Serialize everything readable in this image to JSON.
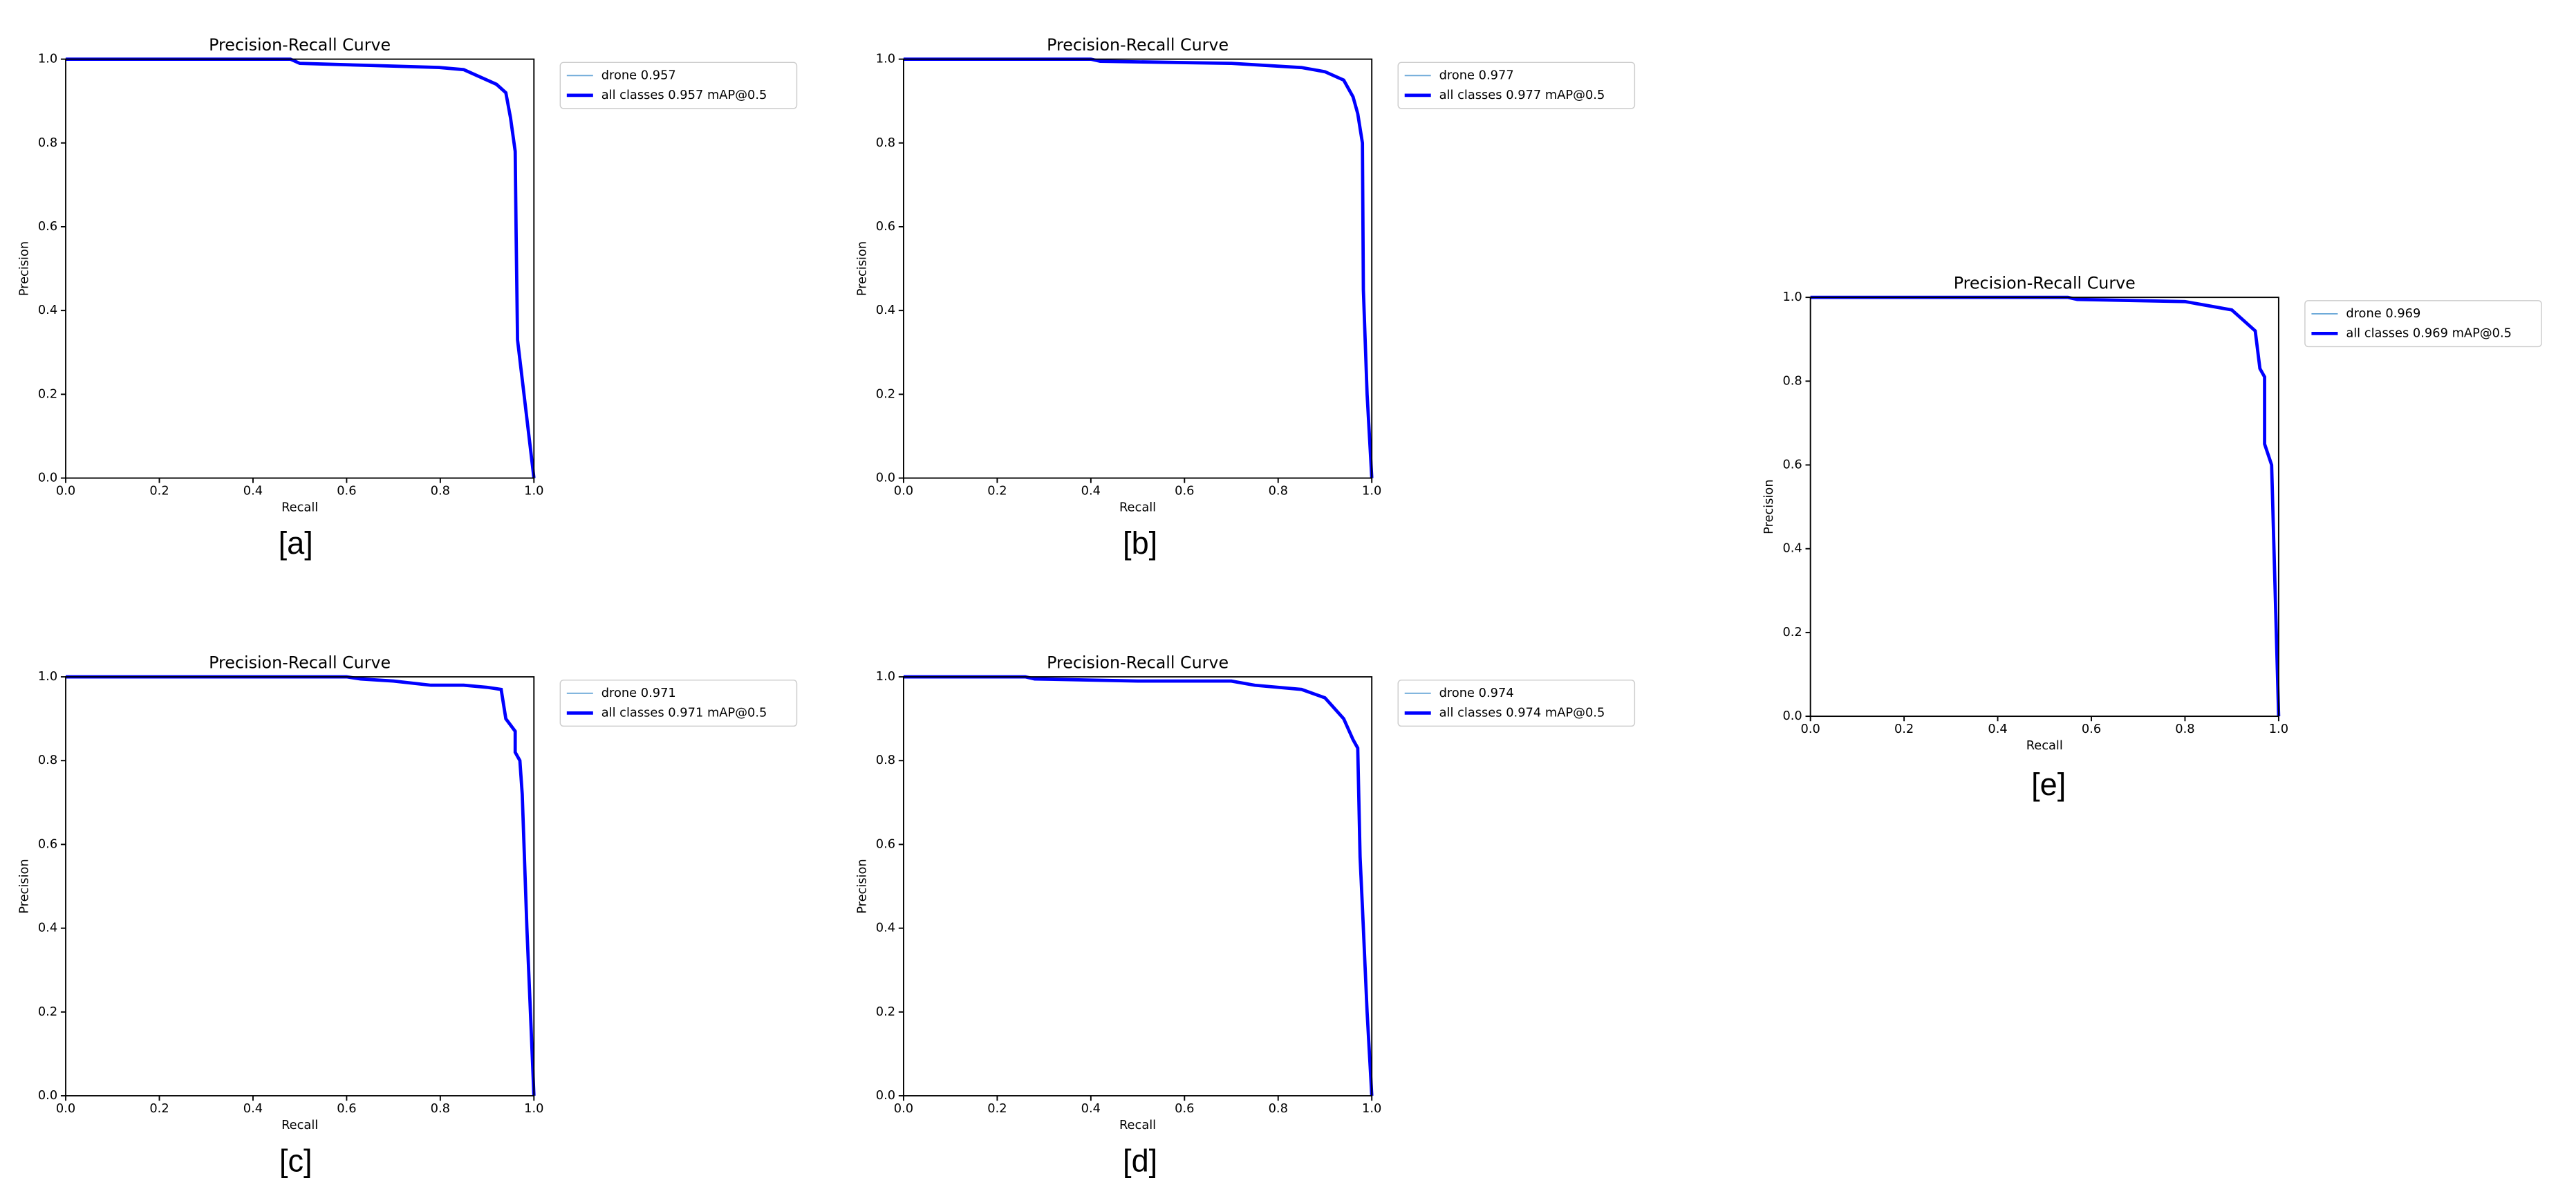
{
  "chart_data": [
    {
      "type": "line",
      "title": "Precision-Recall Curve",
      "x_label": "Recall",
      "y_label": "Precision",
      "caption": "[a]",
      "x": [
        0,
        0.48,
        0.5,
        0.65,
        0.8,
        0.85,
        0.88,
        0.92,
        0.94,
        0.95,
        0.96,
        0.962,
        0.965,
        1.0
      ],
      "series": [
        {
          "name": "drone 0.957",
          "color": "#6aa8d8",
          "values": [
            1,
            1,
            0.99,
            0.985,
            0.98,
            0.975,
            0.96,
            0.94,
            0.92,
            0.86,
            0.78,
            0.58,
            0.33,
            0
          ]
        },
        {
          "name": "all classes 0.957 mAP@0.5",
          "color": "#0000ff",
          "values": [
            1,
            1,
            0.99,
            0.985,
            0.98,
            0.975,
            0.96,
            0.94,
            0.92,
            0.86,
            0.78,
            0.58,
            0.33,
            0
          ]
        }
      ],
      "xlim": [
        0,
        1
      ],
      "ylim": [
        0,
        1
      ],
      "xticks": [
        {
          "value": 0,
          "label": "0.0"
        },
        0.2,
        0.4,
        0.6,
        0.8,
        {
          "value": 1,
          "label": "1.0"
        }
      ],
      "yticks": [
        {
          "value": 0,
          "label": "0.0"
        },
        0.2,
        0.4,
        0.6,
        0.8,
        {
          "value": 1,
          "label": "1.0"
        }
      ]
    },
    {
      "type": "line",
      "title": "Precision-Recall Curve",
      "x_label": "Recall",
      "y_label": "Precision",
      "caption": "[b]",
      "x": [
        0,
        0.4,
        0.42,
        0.7,
        0.85,
        0.9,
        0.94,
        0.96,
        0.97,
        0.98,
        0.982,
        0.99,
        1.0
      ],
      "series": [
        {
          "name": "drone 0.977",
          "color": "#6aa8d8",
          "values": [
            1,
            1,
            0.995,
            0.99,
            0.98,
            0.97,
            0.95,
            0.91,
            0.87,
            0.8,
            0.45,
            0.2,
            0
          ]
        },
        {
          "name": "all classes 0.977 mAP@0.5",
          "color": "#0000ff",
          "values": [
            1,
            1,
            0.995,
            0.99,
            0.98,
            0.97,
            0.95,
            0.91,
            0.87,
            0.8,
            0.45,
            0.2,
            0
          ]
        }
      ],
      "xlim": [
        0,
        1
      ],
      "ylim": [
        0,
        1
      ],
      "xticks": [
        {
          "value": 0,
          "label": "0.0"
        },
        0.2,
        0.4,
        0.6,
        0.8,
        {
          "value": 1,
          "label": "1.0"
        }
      ],
      "yticks": [
        {
          "value": 0,
          "label": "0.0"
        },
        0.2,
        0.4,
        0.6,
        0.8,
        {
          "value": 1,
          "label": "1.0"
        }
      ]
    },
    {
      "type": "line",
      "title": "Precision-Recall Curve",
      "x_label": "Recall",
      "y_label": "Precision",
      "caption": "[c]",
      "x": [
        0,
        0.6,
        0.63,
        0.7,
        0.78,
        0.85,
        0.9,
        0.93,
        0.94,
        0.96,
        0.96,
        0.97,
        0.975,
        0.985,
        1.0
      ],
      "series": [
        {
          "name": "drone 0.971",
          "color": "#6aa8d8",
          "values": [
            1,
            1,
            0.995,
            0.99,
            0.98,
            0.98,
            0.975,
            0.97,
            0.9,
            0.87,
            0.82,
            0.8,
            0.72,
            0.4,
            0
          ]
        },
        {
          "name": "all classes 0.971 mAP@0.5",
          "color": "#0000ff",
          "values": [
            1,
            1,
            0.995,
            0.99,
            0.98,
            0.98,
            0.975,
            0.97,
            0.9,
            0.87,
            0.82,
            0.8,
            0.72,
            0.4,
            0
          ]
        }
      ],
      "xlim": [
        0,
        1
      ],
      "ylim": [
        0,
        1
      ],
      "xticks": [
        {
          "value": 0,
          "label": "0.0"
        },
        0.2,
        0.4,
        0.6,
        0.8,
        {
          "value": 1,
          "label": "1.0"
        }
      ],
      "yticks": [
        {
          "value": 0,
          "label": "0.0"
        },
        0.2,
        0.4,
        0.6,
        0.8,
        {
          "value": 1,
          "label": "1.0"
        }
      ]
    },
    {
      "type": "line",
      "title": "Precision-Recall Curve",
      "x_label": "Recall",
      "y_label": "Precision",
      "caption": "[d]",
      "x": [
        0,
        0.26,
        0.28,
        0.5,
        0.7,
        0.75,
        0.85,
        0.9,
        0.94,
        0.96,
        0.97,
        0.975,
        0.98,
        0.99,
        1.0
      ],
      "series": [
        {
          "name": "drone 0.974",
          "color": "#6aa8d8",
          "values": [
            1,
            1,
            0.995,
            0.99,
            0.99,
            0.98,
            0.97,
            0.95,
            0.9,
            0.85,
            0.83,
            0.57,
            0.45,
            0.2,
            0
          ]
        },
        {
          "name": "all classes 0.974 mAP@0.5",
          "color": "#0000ff",
          "values": [
            1,
            1,
            0.995,
            0.99,
            0.99,
            0.98,
            0.97,
            0.95,
            0.9,
            0.85,
            0.83,
            0.57,
            0.45,
            0.2,
            0
          ]
        }
      ],
      "xlim": [
        0,
        1
      ],
      "ylim": [
        0,
        1
      ],
      "xticks": [
        {
          "value": 0,
          "label": "0.0"
        },
        0.2,
        0.4,
        0.6,
        0.8,
        {
          "value": 1,
          "label": "1.0"
        }
      ],
      "yticks": [
        {
          "value": 0,
          "label": "0.0"
        },
        0.2,
        0.4,
        0.6,
        0.8,
        {
          "value": 1,
          "label": "1.0"
        }
      ]
    },
    {
      "type": "line",
      "title": "Precision-Recall Curve",
      "x_label": "Recall",
      "y_label": "Precision",
      "caption": "[e]",
      "x": [
        0,
        0.55,
        0.57,
        0.8,
        0.85,
        0.9,
        0.93,
        0.95,
        0.96,
        0.97,
        0.97,
        0.985,
        0.99,
        1.0
      ],
      "series": [
        {
          "name": "drone 0.969",
          "color": "#6aa8d8",
          "values": [
            1,
            1,
            0.995,
            0.99,
            0.98,
            0.97,
            0.94,
            0.92,
            0.83,
            0.81,
            0.65,
            0.6,
            0.4,
            0
          ]
        },
        {
          "name": "all classes 0.969 mAP@0.5",
          "color": "#0000ff",
          "values": [
            1,
            1,
            0.995,
            0.99,
            0.98,
            0.97,
            0.94,
            0.92,
            0.83,
            0.81,
            0.65,
            0.6,
            0.4,
            0
          ]
        }
      ],
      "xlim": [
        0,
        1
      ],
      "ylim": [
        0,
        1
      ],
      "xticks": [
        {
          "value": 0,
          "label": "0.0"
        },
        0.2,
        0.4,
        0.6,
        0.8,
        {
          "value": 1,
          "label": "1.0"
        }
      ],
      "yticks": [
        {
          "value": 0,
          "label": "0.0"
        },
        0.2,
        0.4,
        0.6,
        0.8,
        {
          "value": 1,
          "label": "1.0"
        }
      ]
    }
  ]
}
